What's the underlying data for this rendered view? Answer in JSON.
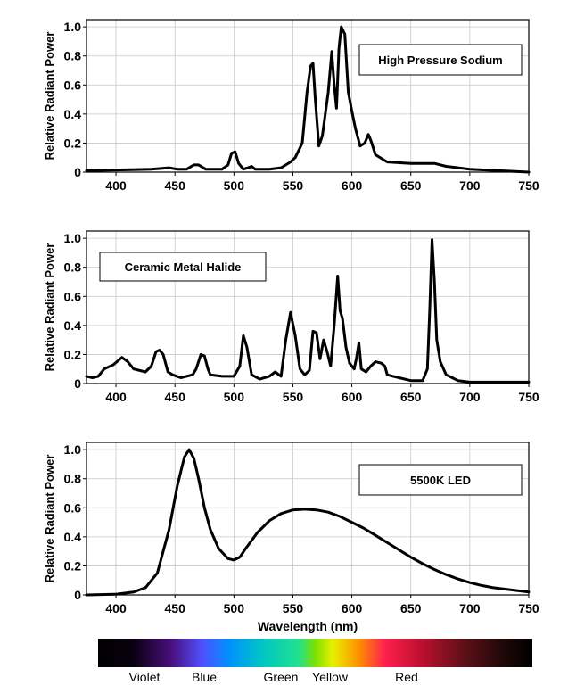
{
  "chart_data": [
    {
      "type": "line",
      "legend": "High Pressure Sodium",
      "legend_placement": "top-right",
      "ylabel": "Relative Radiant Power",
      "xlabel": "",
      "xlim": [
        375,
        750
      ],
      "ylim": [
        0,
        1.05
      ],
      "x_ticks": [
        "400",
        "450",
        "500",
        "550",
        "600",
        "650",
        "700",
        "750"
      ],
      "y_ticks": [
        "0",
        "0.2",
        "0.4",
        "0.6",
        "0.8",
        "1.0"
      ],
      "grid": true,
      "x": [
        375,
        400,
        430,
        445,
        452,
        460,
        466,
        470,
        476,
        482,
        490,
        495,
        498,
        501,
        504,
        508,
        512,
        515,
        518,
        522,
        530,
        540,
        548,
        552,
        558,
        562,
        565,
        567,
        569,
        572,
        575,
        580,
        583,
        585,
        587,
        589,
        591,
        594,
        597,
        600,
        603,
        607,
        611,
        614,
        616,
        620,
        630,
        650,
        670,
        680,
        700,
        750
      ],
      "y": [
        0.01,
        0.015,
        0.02,
        0.03,
        0.02,
        0.02,
        0.05,
        0.05,
        0.02,
        0.02,
        0.02,
        0.05,
        0.13,
        0.14,
        0.06,
        0.02,
        0.03,
        0.04,
        0.02,
        0.02,
        0.02,
        0.03,
        0.07,
        0.1,
        0.2,
        0.55,
        0.73,
        0.75,
        0.5,
        0.18,
        0.25,
        0.55,
        0.83,
        0.6,
        0.44,
        0.85,
        1.0,
        0.95,
        0.55,
        0.42,
        0.3,
        0.18,
        0.2,
        0.26,
        0.22,
        0.12,
        0.07,
        0.06,
        0.06,
        0.04,
        0.02,
        0.0
      ]
    },
    {
      "type": "line",
      "legend": "Ceramic Metal Halide",
      "legend_placement": "top-left",
      "ylabel": "Relative Radiant Power",
      "xlabel": "",
      "xlim": [
        375,
        750
      ],
      "ylim": [
        0,
        1.05
      ],
      "x_ticks": [
        "400",
        "450",
        "500",
        "550",
        "600",
        "650",
        "700",
        "750"
      ],
      "y_ticks": [
        "0",
        "0.2",
        "0.4",
        "0.6",
        "0.8",
        "1.0"
      ],
      "grid": true,
      "x": [
        375,
        380,
        385,
        390,
        398,
        405,
        410,
        415,
        425,
        430,
        434,
        437,
        440,
        444,
        448,
        455,
        465,
        468,
        472,
        475,
        478,
        480,
        490,
        500,
        505,
        508,
        511,
        515,
        522,
        530,
        535,
        540,
        544,
        548,
        552,
        556,
        560,
        564,
        567,
        570,
        573,
        576,
        579,
        582,
        585,
        588,
        590,
        592,
        595,
        598,
        602,
        604,
        606,
        608,
        612,
        616,
        620,
        625,
        628,
        630,
        635,
        640,
        650,
        660,
        664,
        666,
        668,
        670,
        672,
        675,
        680,
        690,
        700,
        720,
        750
      ],
      "y": [
        0.05,
        0.04,
        0.05,
        0.1,
        0.13,
        0.18,
        0.15,
        0.1,
        0.08,
        0.12,
        0.22,
        0.23,
        0.2,
        0.08,
        0.06,
        0.04,
        0.06,
        0.1,
        0.2,
        0.19,
        0.1,
        0.06,
        0.05,
        0.05,
        0.12,
        0.33,
        0.25,
        0.06,
        0.03,
        0.05,
        0.08,
        0.05,
        0.3,
        0.49,
        0.33,
        0.1,
        0.06,
        0.09,
        0.36,
        0.35,
        0.17,
        0.3,
        0.22,
        0.12,
        0.4,
        0.74,
        0.5,
        0.45,
        0.25,
        0.14,
        0.1,
        0.18,
        0.28,
        0.1,
        0.08,
        0.12,
        0.15,
        0.14,
        0.12,
        0.06,
        0.05,
        0.04,
        0.02,
        0.02,
        0.1,
        0.5,
        0.99,
        0.7,
        0.3,
        0.15,
        0.06,
        0.02,
        0.01,
        0.01,
        0.01
      ]
    },
    {
      "type": "line",
      "legend": "5500K LED",
      "legend_placement": "top-right",
      "ylabel": "Relative Radiant Power",
      "xlabel": "Wavelength (nm)",
      "xlim": [
        375,
        750
      ],
      "ylim": [
        0,
        1.05
      ],
      "x_ticks": [
        "400",
        "450",
        "500",
        "550",
        "600",
        "650",
        "700",
        "750"
      ],
      "y_ticks": [
        "0",
        "0.2",
        "0.4",
        "0.6",
        "0.8",
        "1.0"
      ],
      "grid": true,
      "x": [
        375,
        400,
        415,
        425,
        435,
        445,
        452,
        458,
        462,
        466,
        470,
        475,
        480,
        487,
        495,
        500,
        505,
        510,
        520,
        530,
        540,
        550,
        560,
        570,
        580,
        590,
        600,
        610,
        620,
        630,
        640,
        650,
        660,
        670,
        680,
        690,
        700,
        710,
        720,
        730,
        740,
        750
      ],
      "y": [
        0.0,
        0.005,
        0.02,
        0.05,
        0.15,
        0.45,
        0.75,
        0.95,
        1.0,
        0.94,
        0.8,
        0.6,
        0.45,
        0.32,
        0.25,
        0.24,
        0.26,
        0.32,
        0.43,
        0.51,
        0.56,
        0.585,
        0.59,
        0.585,
        0.57,
        0.54,
        0.5,
        0.46,
        0.41,
        0.36,
        0.31,
        0.26,
        0.215,
        0.175,
        0.14,
        0.11,
        0.085,
        0.065,
        0.05,
        0.04,
        0.03,
        0.02
      ]
    }
  ],
  "spectrum_bar": {
    "labels": [
      "Violet",
      "Blue",
      "Green",
      "Yellow",
      "Red"
    ]
  }
}
